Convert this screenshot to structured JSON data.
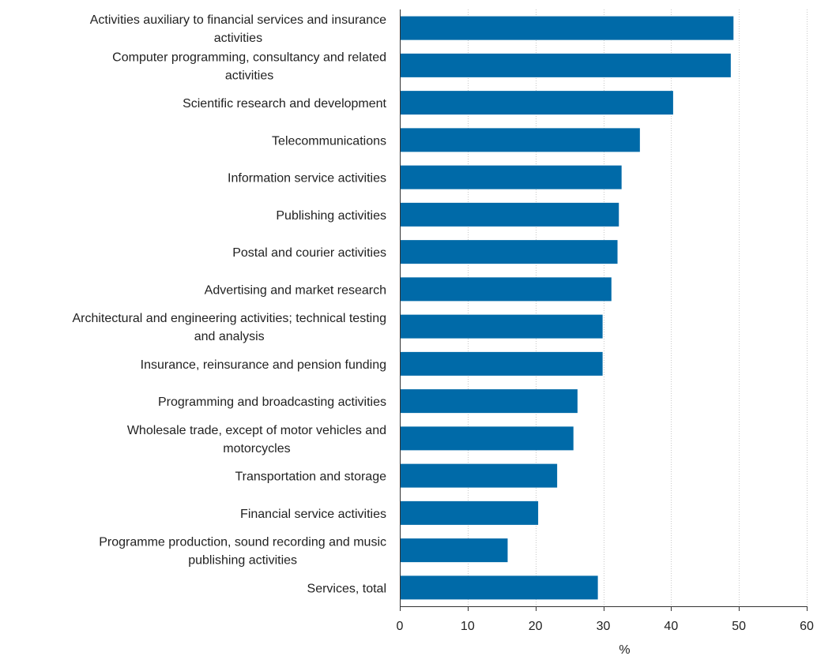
{
  "chart_data": {
    "type": "bar",
    "orientation": "horizontal",
    "categories": [
      [
        "Activities auxiliary to financial services and insurance",
        "activities"
      ],
      [
        "Computer programming, consultancy and related",
        "activities"
      ],
      [
        "Scientific research and development"
      ],
      [
        "Telecommunications"
      ],
      [
        "Information service activities"
      ],
      [
        "Publishing activities"
      ],
      [
        "Postal and courier activities"
      ],
      [
        "Advertising and market research"
      ],
      [
        "Architectural and engineering activities; technical testing",
        "and analysis"
      ],
      [
        "Insurance, reinsurance and pension funding"
      ],
      [
        "Programming and broadcasting activities"
      ],
      [
        "Wholesale trade, except of motor vehicles and",
        "motorcycles"
      ],
      [
        "Transportation and storage"
      ],
      [
        "Financial service activities"
      ],
      [
        "Programme production, sound recording and music",
        "publishing activities"
      ],
      [
        "Services, total"
      ]
    ],
    "values": [
      49.2,
      48.8,
      40.3,
      35.4,
      32.7,
      32.3,
      32.1,
      31.2,
      29.9,
      29.9,
      26.2,
      25.6,
      23.2,
      20.4,
      15.9,
      29.2
    ],
    "xlabel": "%",
    "xlim": [
      0,
      60
    ],
    "xticks": [
      0,
      10,
      20,
      30,
      40,
      50,
      60
    ],
    "grid": true,
    "bar_color": "#006aa8"
  }
}
